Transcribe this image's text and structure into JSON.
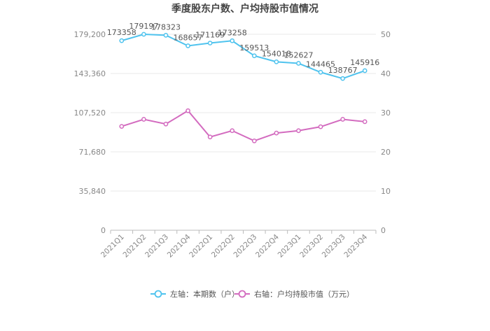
{
  "chart_data": {
    "type": "line",
    "title": "季度股东户数、户均持股市值情况",
    "categories": [
      "2021Q1",
      "2021Q2",
      "2021Q3",
      "2021Q4",
      "2022Q1",
      "2022Q2",
      "2022Q3",
      "2022Q4",
      "2023Q1",
      "2023Q2",
      "2023Q3",
      "2023Q4"
    ],
    "y_left": {
      "ticks": [
        0,
        35840,
        71680,
        107520,
        143360,
        179200
      ],
      "tick_labels": [
        "0",
        "35,840",
        "71,680",
        "107,520",
        "143,360",
        "179,200"
      ],
      "range": [
        0,
        179200
      ]
    },
    "y_right": {
      "ticks": [
        0,
        10,
        20,
        30,
        40,
        50
      ],
      "tick_labels": [
        "0",
        "10",
        "20",
        "30",
        "40",
        "50"
      ],
      "range": [
        0,
        50
      ]
    },
    "series": [
      {
        "name": "左轴：本期数（户）",
        "axis": "left",
        "color": "#4fc3ee",
        "values": [
          173358,
          179197,
          178323,
          168657,
          171169,
          173258,
          159513,
          154018,
          152627,
          144465,
          138767,
          145916
        ],
        "labels": [
          "173358",
          "179197",
          "178323",
          "168657",
          "171169",
          "173258",
          "159513",
          "154018",
          "152627",
          "144465",
          "138767",
          "145916"
        ]
      },
      {
        "name": "右轴：户均持股市值（万元）",
        "axis": "right",
        "color": "#d36bbf",
        "values": [
          26.5,
          28.3,
          27.1,
          30.5,
          23.8,
          25.4,
          22.8,
          24.8,
          25.4,
          26.4,
          28.3,
          27.7
        ]
      }
    ],
    "grid": true,
    "legend_position": "bottom"
  }
}
